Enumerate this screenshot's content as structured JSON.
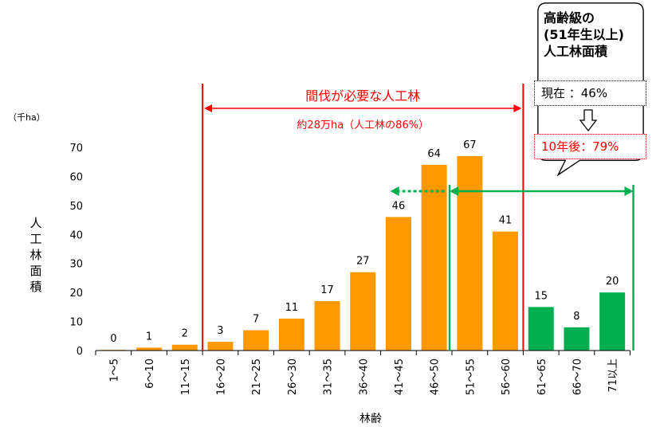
{
  "chart_data": {
    "type": "bar",
    "title": "",
    "xlabel": "林齢",
    "ylabel": "人工林面積",
    "unit_label": "（千ha）",
    "ylim": [
      0,
      70
    ],
    "yticks": [
      0,
      10,
      20,
      30,
      40,
      50,
      60,
      70
    ],
    "grid": false,
    "categories": [
      "1～5",
      "6～10",
      "11～15",
      "16～20",
      "21～25",
      "26～30",
      "31～35",
      "36～40",
      "41～45",
      "46～50",
      "51～55",
      "56～60",
      "61～65",
      "66～70",
      "71以上"
    ],
    "values": [
      0,
      1,
      2,
      3,
      7,
      11,
      17,
      27,
      46,
      64,
      67,
      41,
      15,
      8,
      20
    ],
    "data_labels": [
      "0",
      "1",
      "2",
      "3",
      "7",
      "11",
      "17",
      "27",
      "46",
      "64",
      "67",
      "41",
      "15",
      "8",
      "20"
    ],
    "bar_colors": [
      "#ff9900",
      "#ff9900",
      "#ff9900",
      "#ff9900",
      "#ff9900",
      "#ff9900",
      "#ff9900",
      "#ff9900",
      "#ff9900",
      "#ff9900",
      "#ff9900",
      "#ff9900",
      "#00b050",
      "#00b050",
      "#00b050"
    ],
    "annotations": {
      "thinning_title": "間伐が必要な人工林",
      "thinning_sub": "約28万ha（人工林の86%）",
      "thinning_range": [
        "16～20",
        "56～60"
      ]
    }
  },
  "colors": {
    "orange": "#ff9900",
    "green": "#00b050",
    "red": "#ff0000"
  },
  "callout": {
    "title": "高齢級の\n(51年生以上)\n人工林面積",
    "now": "現在 ：46%",
    "future": "10年後：79%"
  }
}
